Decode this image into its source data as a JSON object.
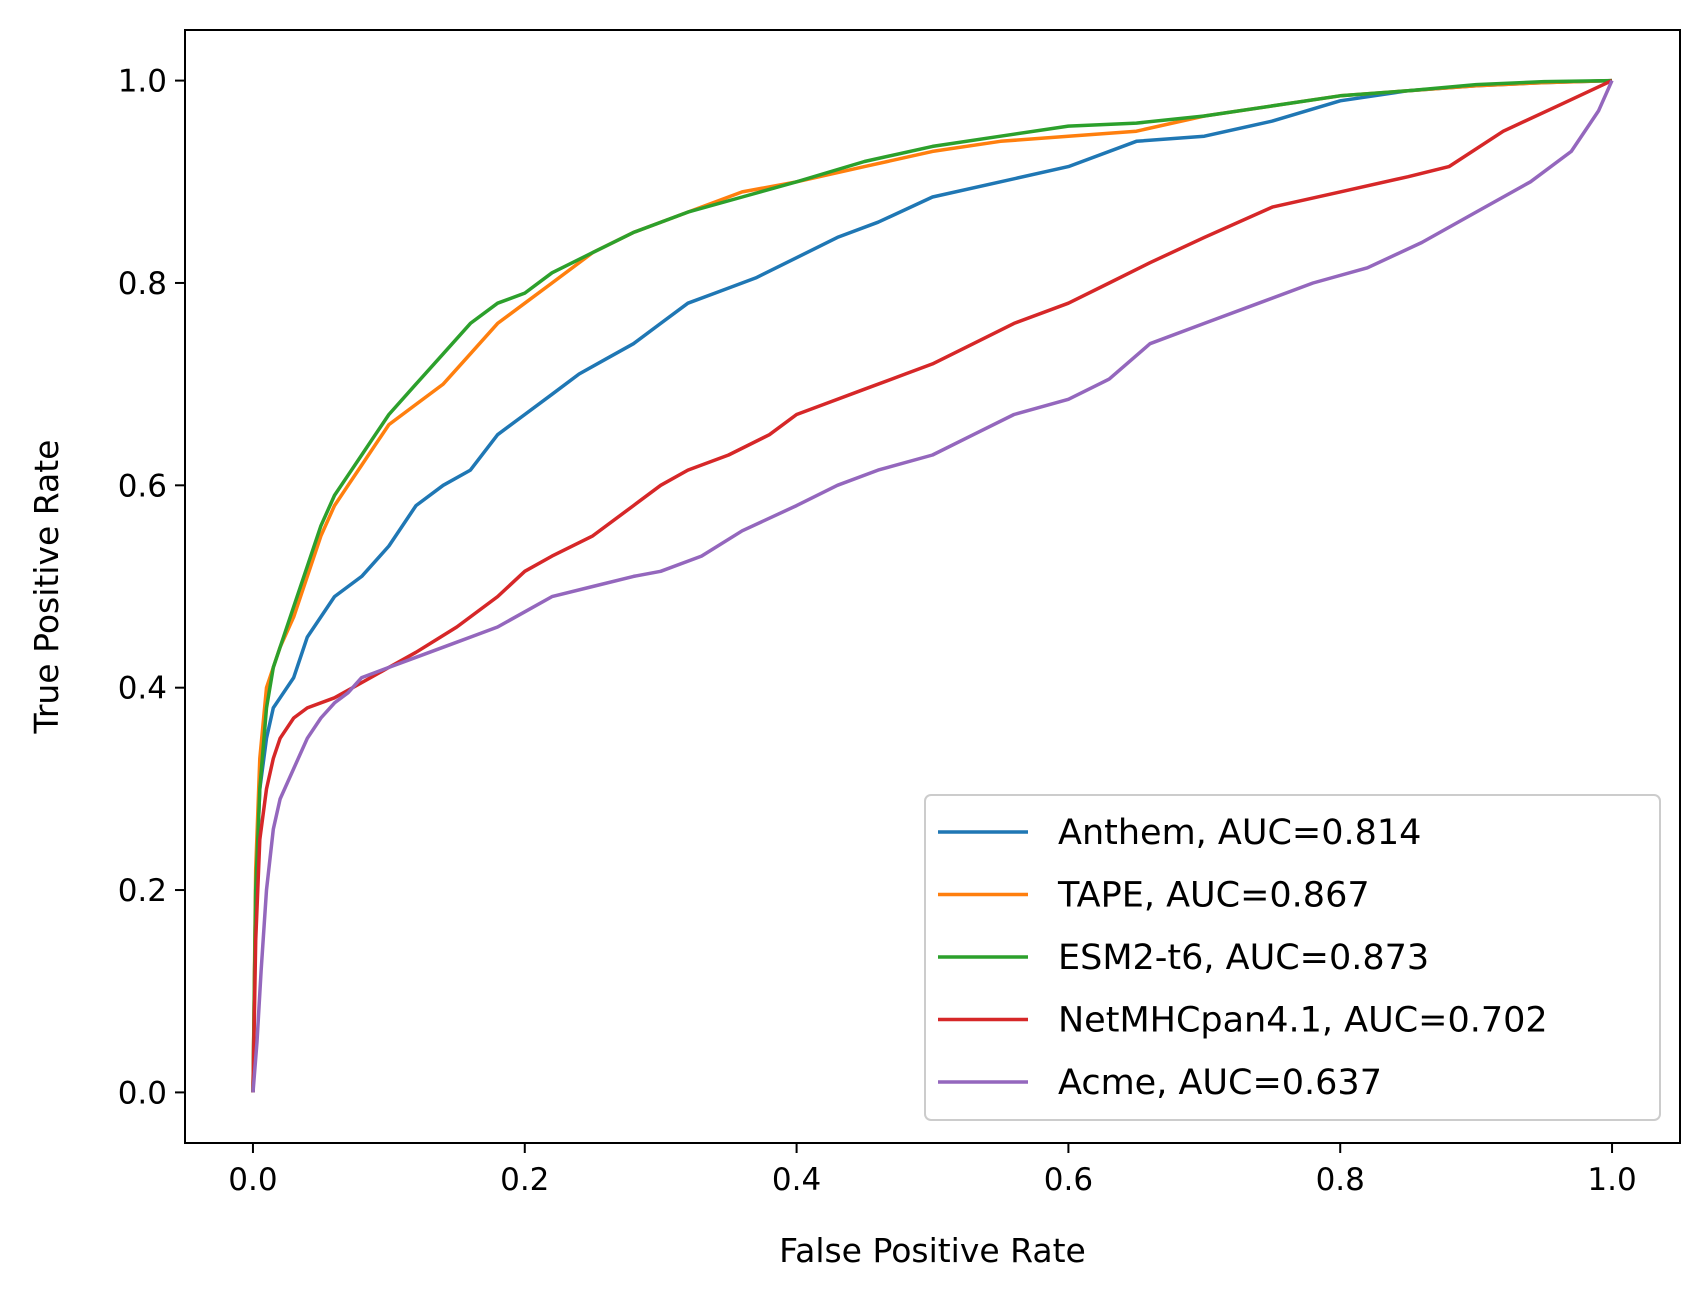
{
  "chart_data": {
    "type": "line",
    "title": "",
    "xlabel": "False Positive Rate",
    "ylabel": "True Positive Rate",
    "xlim": [
      -0.05,
      1.05
    ],
    "ylim": [
      -0.05,
      1.05
    ],
    "xticks": [
      0.0,
      0.2,
      0.4,
      0.6,
      0.8,
      1.0
    ],
    "yticks": [
      0.0,
      0.2,
      0.4,
      0.6,
      0.8,
      1.0
    ],
    "xtick_labels": [
      "0.0",
      "0.2",
      "0.4",
      "0.6",
      "0.8",
      "1.0"
    ],
    "ytick_labels": [
      "0.0",
      "0.2",
      "0.4",
      "0.6",
      "0.8",
      "1.0"
    ],
    "grid": false,
    "legend_position": "lower-right",
    "series": [
      {
        "name": "Anthem, AUC=0.814",
        "color": "#1f77b4",
        "x": [
          0,
          0.002,
          0.005,
          0.01,
          0.015,
          0.02,
          0.03,
          0.04,
          0.05,
          0.06,
          0.07,
          0.08,
          0.1,
          0.12,
          0.14,
          0.16,
          0.18,
          0.2,
          0.22,
          0.24,
          0.26,
          0.28,
          0.3,
          0.32,
          0.34,
          0.37,
          0.4,
          0.43,
          0.46,
          0.5,
          0.55,
          0.6,
          0.65,
          0.7,
          0.75,
          0.8,
          0.85,
          0.9,
          0.95,
          1.0
        ],
        "y": [
          0.0,
          0.2,
          0.3,
          0.35,
          0.38,
          0.39,
          0.41,
          0.45,
          0.47,
          0.49,
          0.5,
          0.51,
          0.54,
          0.58,
          0.6,
          0.615,
          0.65,
          0.67,
          0.69,
          0.71,
          0.725,
          0.74,
          0.76,
          0.78,
          0.79,
          0.805,
          0.825,
          0.845,
          0.86,
          0.885,
          0.9,
          0.915,
          0.94,
          0.945,
          0.96,
          0.98,
          0.99,
          0.995,
          0.998,
          1.0
        ]
      },
      {
        "name": "TAPE, AUC=0.867",
        "color": "#ff7f0e",
        "x": [
          0,
          0.002,
          0.005,
          0.01,
          0.015,
          0.02,
          0.03,
          0.04,
          0.05,
          0.06,
          0.07,
          0.08,
          0.09,
          0.1,
          0.12,
          0.14,
          0.16,
          0.18,
          0.2,
          0.22,
          0.25,
          0.28,
          0.32,
          0.36,
          0.4,
          0.45,
          0.5,
          0.55,
          0.6,
          0.65,
          0.7,
          0.75,
          0.8,
          0.85,
          0.9,
          0.95,
          1.0
        ],
        "y": [
          0.0,
          0.22,
          0.33,
          0.4,
          0.42,
          0.44,
          0.47,
          0.51,
          0.55,
          0.58,
          0.6,
          0.62,
          0.64,
          0.66,
          0.68,
          0.7,
          0.73,
          0.76,
          0.78,
          0.8,
          0.83,
          0.85,
          0.87,
          0.89,
          0.9,
          0.915,
          0.93,
          0.94,
          0.945,
          0.95,
          0.965,
          0.975,
          0.985,
          0.99,
          0.995,
          0.998,
          1.0
        ]
      },
      {
        "name": "ESM2-t6, AUC=0.873",
        "color": "#2ca02c",
        "x": [
          0,
          0.002,
          0.005,
          0.01,
          0.015,
          0.02,
          0.03,
          0.04,
          0.05,
          0.06,
          0.07,
          0.08,
          0.09,
          0.1,
          0.12,
          0.14,
          0.16,
          0.18,
          0.2,
          0.22,
          0.25,
          0.28,
          0.32,
          0.36,
          0.4,
          0.45,
          0.5,
          0.55,
          0.6,
          0.65,
          0.7,
          0.75,
          0.8,
          0.85,
          0.9,
          0.95,
          1.0
        ],
        "y": [
          0.0,
          0.2,
          0.3,
          0.38,
          0.42,
          0.44,
          0.48,
          0.52,
          0.56,
          0.59,
          0.61,
          0.63,
          0.65,
          0.67,
          0.7,
          0.73,
          0.76,
          0.78,
          0.79,
          0.81,
          0.83,
          0.85,
          0.87,
          0.885,
          0.9,
          0.92,
          0.935,
          0.945,
          0.955,
          0.958,
          0.965,
          0.975,
          0.985,
          0.99,
          0.996,
          0.999,
          1.0
        ]
      },
      {
        "name": "NetMHCpan4.1, AUC=0.702",
        "color": "#d62728",
        "x": [
          0,
          0.002,
          0.005,
          0.01,
          0.015,
          0.02,
          0.03,
          0.04,
          0.06,
          0.08,
          0.1,
          0.12,
          0.15,
          0.18,
          0.2,
          0.22,
          0.25,
          0.28,
          0.3,
          0.32,
          0.35,
          0.38,
          0.4,
          0.42,
          0.45,
          0.48,
          0.5,
          0.53,
          0.56,
          0.6,
          0.63,
          0.66,
          0.7,
          0.75,
          0.8,
          0.85,
          0.88,
          0.92,
          0.96,
          1.0
        ],
        "y": [
          0.0,
          0.15,
          0.25,
          0.3,
          0.33,
          0.35,
          0.37,
          0.38,
          0.39,
          0.405,
          0.42,
          0.435,
          0.46,
          0.49,
          0.515,
          0.53,
          0.55,
          0.58,
          0.6,
          0.615,
          0.63,
          0.65,
          0.67,
          0.68,
          0.695,
          0.71,
          0.72,
          0.74,
          0.76,
          0.78,
          0.8,
          0.82,
          0.845,
          0.875,
          0.89,
          0.905,
          0.915,
          0.95,
          0.975,
          1.0
        ]
      },
      {
        "name": "Acme, AUC=0.637",
        "color": "#9467bd",
        "x": [
          0,
          0.003,
          0.006,
          0.01,
          0.015,
          0.02,
          0.03,
          0.04,
          0.05,
          0.06,
          0.07,
          0.08,
          0.1,
          0.12,
          0.15,
          0.18,
          0.2,
          0.22,
          0.25,
          0.28,
          0.3,
          0.33,
          0.36,
          0.4,
          0.43,
          0.46,
          0.5,
          0.53,
          0.56,
          0.6,
          0.63,
          0.66,
          0.7,
          0.74,
          0.78,
          0.82,
          0.86,
          0.9,
          0.94,
          0.97,
          0.99,
          1.0
        ],
        "y": [
          0.0,
          0.05,
          0.12,
          0.2,
          0.26,
          0.29,
          0.32,
          0.35,
          0.37,
          0.385,
          0.395,
          0.41,
          0.42,
          0.43,
          0.445,
          0.46,
          0.475,
          0.49,
          0.5,
          0.51,
          0.515,
          0.53,
          0.555,
          0.58,
          0.6,
          0.615,
          0.63,
          0.65,
          0.67,
          0.685,
          0.705,
          0.74,
          0.76,
          0.78,
          0.8,
          0.815,
          0.84,
          0.87,
          0.9,
          0.93,
          0.97,
          1.0
        ]
      }
    ]
  }
}
